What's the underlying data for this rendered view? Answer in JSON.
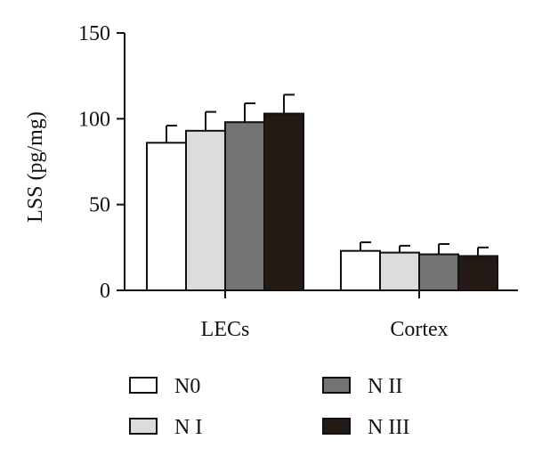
{
  "chart_data": {
    "type": "bar",
    "title": "",
    "xlabel": "",
    "ylabel": "LSS (pg/mg)",
    "ylim": [
      0,
      150
    ],
    "yticks": [
      0,
      50,
      100,
      150
    ],
    "grid": false,
    "legend_position": "bottom",
    "categories": [
      "LECs",
      "Cortex"
    ],
    "series": [
      {
        "name": "N0",
        "color": "#ffffff",
        "values": [
          86,
          23
        ],
        "errors": [
          10,
          5
        ]
      },
      {
        "name": "N I",
        "color": "#dcdcdc",
        "values": [
          93,
          22
        ],
        "errors": [
          11,
          4
        ]
      },
      {
        "name": "N II",
        "color": "#737373",
        "values": [
          98,
          21
        ],
        "errors": [
          11,
          6
        ]
      },
      {
        "name": "N III",
        "color": "#231a16",
        "values": [
          103,
          20
        ],
        "errors": [
          11,
          5
        ]
      }
    ]
  }
}
